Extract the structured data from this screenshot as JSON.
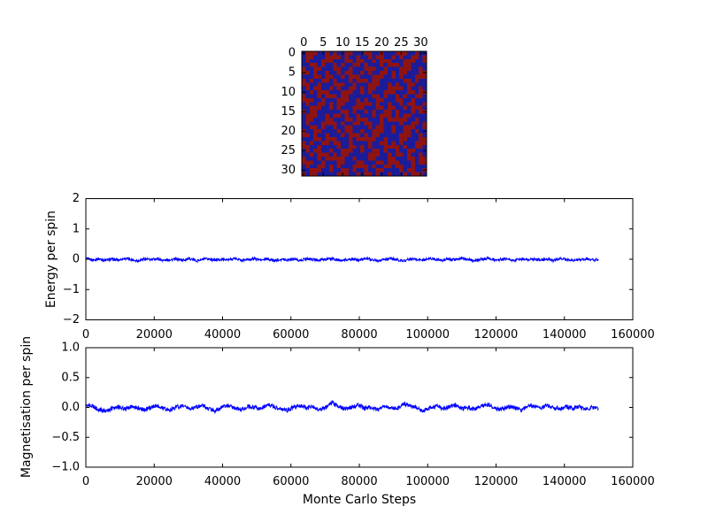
{
  "figure": {
    "background": "#ffffff",
    "frame_color": "#000000",
    "text_color": "#000000"
  },
  "chart_data": [
    {
      "type": "heatmap",
      "name": "spin-lattice",
      "grid_size": 32,
      "xticks": [
        0,
        5,
        10,
        15,
        20,
        25,
        30
      ],
      "xtick_labels": [
        "0",
        "5",
        "10",
        "15",
        "20",
        "25",
        "30"
      ],
      "yticks": [
        0,
        5,
        10,
        15,
        20,
        25,
        30
      ],
      "ytick_labels": [
        "0",
        "5",
        "10",
        "15",
        "20",
        "25",
        "30"
      ],
      "color_up": "#8e1413",
      "color_down": "#1c1c99",
      "rows": [
        "brrrbbrbrbbrrbbbrrbbrbbbrrrbbrbb",
        "brrbbbrrrrbrbbrbbrbrrbbrbrbbrrbr",
        "brbbbrrrbbbrrbrrbbrbrrrbbbrrrbbr",
        "bbrrbrbbrbrbbrrbrbbbrbrrrbrrbbbb",
        "rbbrrbbbrrbbrbbbrrrbbrbbbrrrbbrb",
        "rrbrbbrbbrbrrbbrbrbbrrbrbrrbbbrr",
        "bbbrrbrrbbrbrrrbbbrrrbbrbrbbbrrr",
        "rbrbbrrbrbbbrbrrrbrrbbbbbbrrbrbb",
        "rrbbrbbbrrrbbrbbbrrrbbrbrbbrrbbb",
        "brbrrbbrbrbbrrbrbrrbbbrrrrbrbbrb",
        "bbrbrrrbbbrrrbbrbrbbbrrrbbbrrbrr",
        "rbbbrbrrrbrrbbbbbbrrbrbbrbrbbrrb",
        "rrrbbrbbbrrrbbrbrbbrrbbbrrbbrbbb",
        "brbbrrbrbrrbbbrrrrbrbbrbbrbrrbbr",
        "bbrrrbbrbrbbbrrrbbbrrbrrbbrbrrrb",
        "rbrrbbbbbbrrbrbbrbrbbrrbrbbbrbrr",
        "brrrbbrbrrbrbbrbbbrbrrrbrbrrbbbb",
        "brrbbbrrbbbrrbrrrbbbrbrrrrrbbrbb",
        "brbbbrrrrbrbbrrbrrbbrbbbbrbbrrbr",
        "bbrrbrbbrbbrrbbbbrbrrbbrbbrrrbbr",
        "rbbrrbbbbrbrrbbrbbrrrbbrbbrrbrbb",
        "rrbrbbrbbbrbrrrbrbrrbbbbbrrrbbrb",
        "bbbrrbrrrbbbrbrrrrrbbrbbbrrbbbrr",
        "rbrbbrrbrrbbrbbbbrbbrrbrbrbbbrrr",
        "rrbbrbbbbrbbrrbrbrbbbrrrrbrbbrrb",
        "brbrrbbrbbrrrbbrbbrrbrbbrbbrrbbb",
        "bbrbrrrbrbrrbbbbbrrrbbrbrrbrbbrb",
        "rbbbrbrrrrrbbrbbbrrbbbrrbbbrrbrr",
        "rrrbbrbbbrrbbbrrbbbrrbrrrbbbrbrr",
        "brbbrrbrbrbbbrrrrbrbbrrbrrbbrbbb",
        "bbrrrbbrbbrrbrbbrbbrrbbbbrbrrbbr",
        "rbrrbbbbbrrrbbrbrrbrbbrbbbrbrrrb"
      ]
    },
    {
      "type": "line",
      "name": "energy",
      "ylabel": "Energy per spin",
      "ylim": [
        -2,
        2
      ],
      "yticks": [
        2,
        1,
        0,
        -1,
        -2
      ],
      "ytick_labels": [
        "2",
        "1",
        "0",
        "−1",
        "−2"
      ],
      "xlim": [
        0,
        160000
      ],
      "xticks": [
        0,
        20000,
        40000,
        60000,
        80000,
        100000,
        120000,
        140000,
        160000
      ],
      "xtick_labels": [
        "0",
        "20000",
        "40000",
        "60000",
        "80000",
        "100000",
        "120000",
        "140000",
        "160000"
      ],
      "x_end": 150000,
      "line_color": "#0000ff",
      "noise_band": 0.045,
      "values": [
        0.02,
        -0.02,
        0.01,
        -0.04,
        0.0,
        -0.03,
        0.03,
        -0.01,
        -0.05,
        0.01,
        -0.02,
        0.02,
        -0.04,
        -0.01,
        0.0,
        -0.03,
        0.02,
        -0.05,
        -0.01,
        0.01,
        -0.03,
        0.0,
        -0.02,
        0.03,
        -0.04,
        -0.01,
        0.02,
        -0.03,
        0.01,
        -0.05,
        0.0,
        -0.02,
        0.01,
        -0.04,
        0.02,
        -0.01,
        -0.03,
        0.0,
        0.02,
        -0.05,
        -0.02,
        0.01,
        -0.03,
        0.03,
        -0.01,
        -0.04,
        0.0,
        0.02,
        -0.02,
        -0.05,
        0.01,
        -0.01,
        -0.03,
        0.02,
        0.0,
        -0.04,
        0.01,
        -0.02,
        0.03,
        -0.01,
        -0.05,
        0.0,
        0.02,
        -0.03,
        -0.01,
        0.01,
        -0.04,
        0.02,
        -0.02,
        0.0,
        -0.03,
        0.01,
        -0.05,
        0.02,
        -0.01,
        -0.03,
        0.0,
        0.01,
        -0.02,
        -0.01
      ]
    },
    {
      "type": "line",
      "name": "magnetisation",
      "ylabel": "Magnetisation per spin",
      "xlabel": "Monte Carlo Steps",
      "ylim": [
        -1,
        1
      ],
      "yticks": [
        1,
        0.5,
        0,
        -0.5,
        -1
      ],
      "ytick_labels": [
        "1.0",
        "0.5",
        "0.0",
        "−0.5",
        "−1.0"
      ],
      "xlim": [
        0,
        160000
      ],
      "xticks": [
        0,
        20000,
        40000,
        60000,
        80000,
        100000,
        120000,
        140000,
        160000
      ],
      "xtick_labels": [
        "0",
        "20000",
        "40000",
        "60000",
        "80000",
        "100000",
        "120000",
        "140000",
        "160000"
      ],
      "x_end": 150000,
      "line_color": "#0000ff",
      "noise_band": 0.035,
      "values": [
        0.05,
        0.03,
        -0.04,
        -0.06,
        -0.02,
        0.01,
        -0.03,
        0.02,
        -0.01,
        -0.04,
        0.0,
        0.03,
        -0.02,
        -0.05,
        0.01,
        0.02,
        -0.03,
        0.0,
        0.04,
        -0.02,
        -0.06,
        0.01,
        0.03,
        -0.01,
        -0.04,
        0.02,
        0.0,
        -0.03,
        0.05,
        0.01,
        -0.02,
        -0.05,
        0.0,
        0.03,
        -0.01,
        0.02,
        -0.04,
        0.01,
        0.08,
        0.02,
        -0.03,
        0.0,
        0.04,
        -0.02,
        0.01,
        -0.05,
        0.03,
        0.0,
        -0.02,
        0.06,
        0.03,
        -0.01,
        -0.06,
        0.0,
        0.02,
        -0.03,
        0.01,
        0.04,
        -0.02,
        0.0,
        -0.04,
        0.02,
        0.05,
        -0.01,
        -0.03,
        0.01,
        0.0,
        -0.05,
        0.02,
        0.03,
        -0.02,
        0.04,
        0.0,
        -0.03,
        0.01,
        -0.01,
        0.02,
        -0.04,
        0.0,
        -0.02
      ]
    }
  ]
}
